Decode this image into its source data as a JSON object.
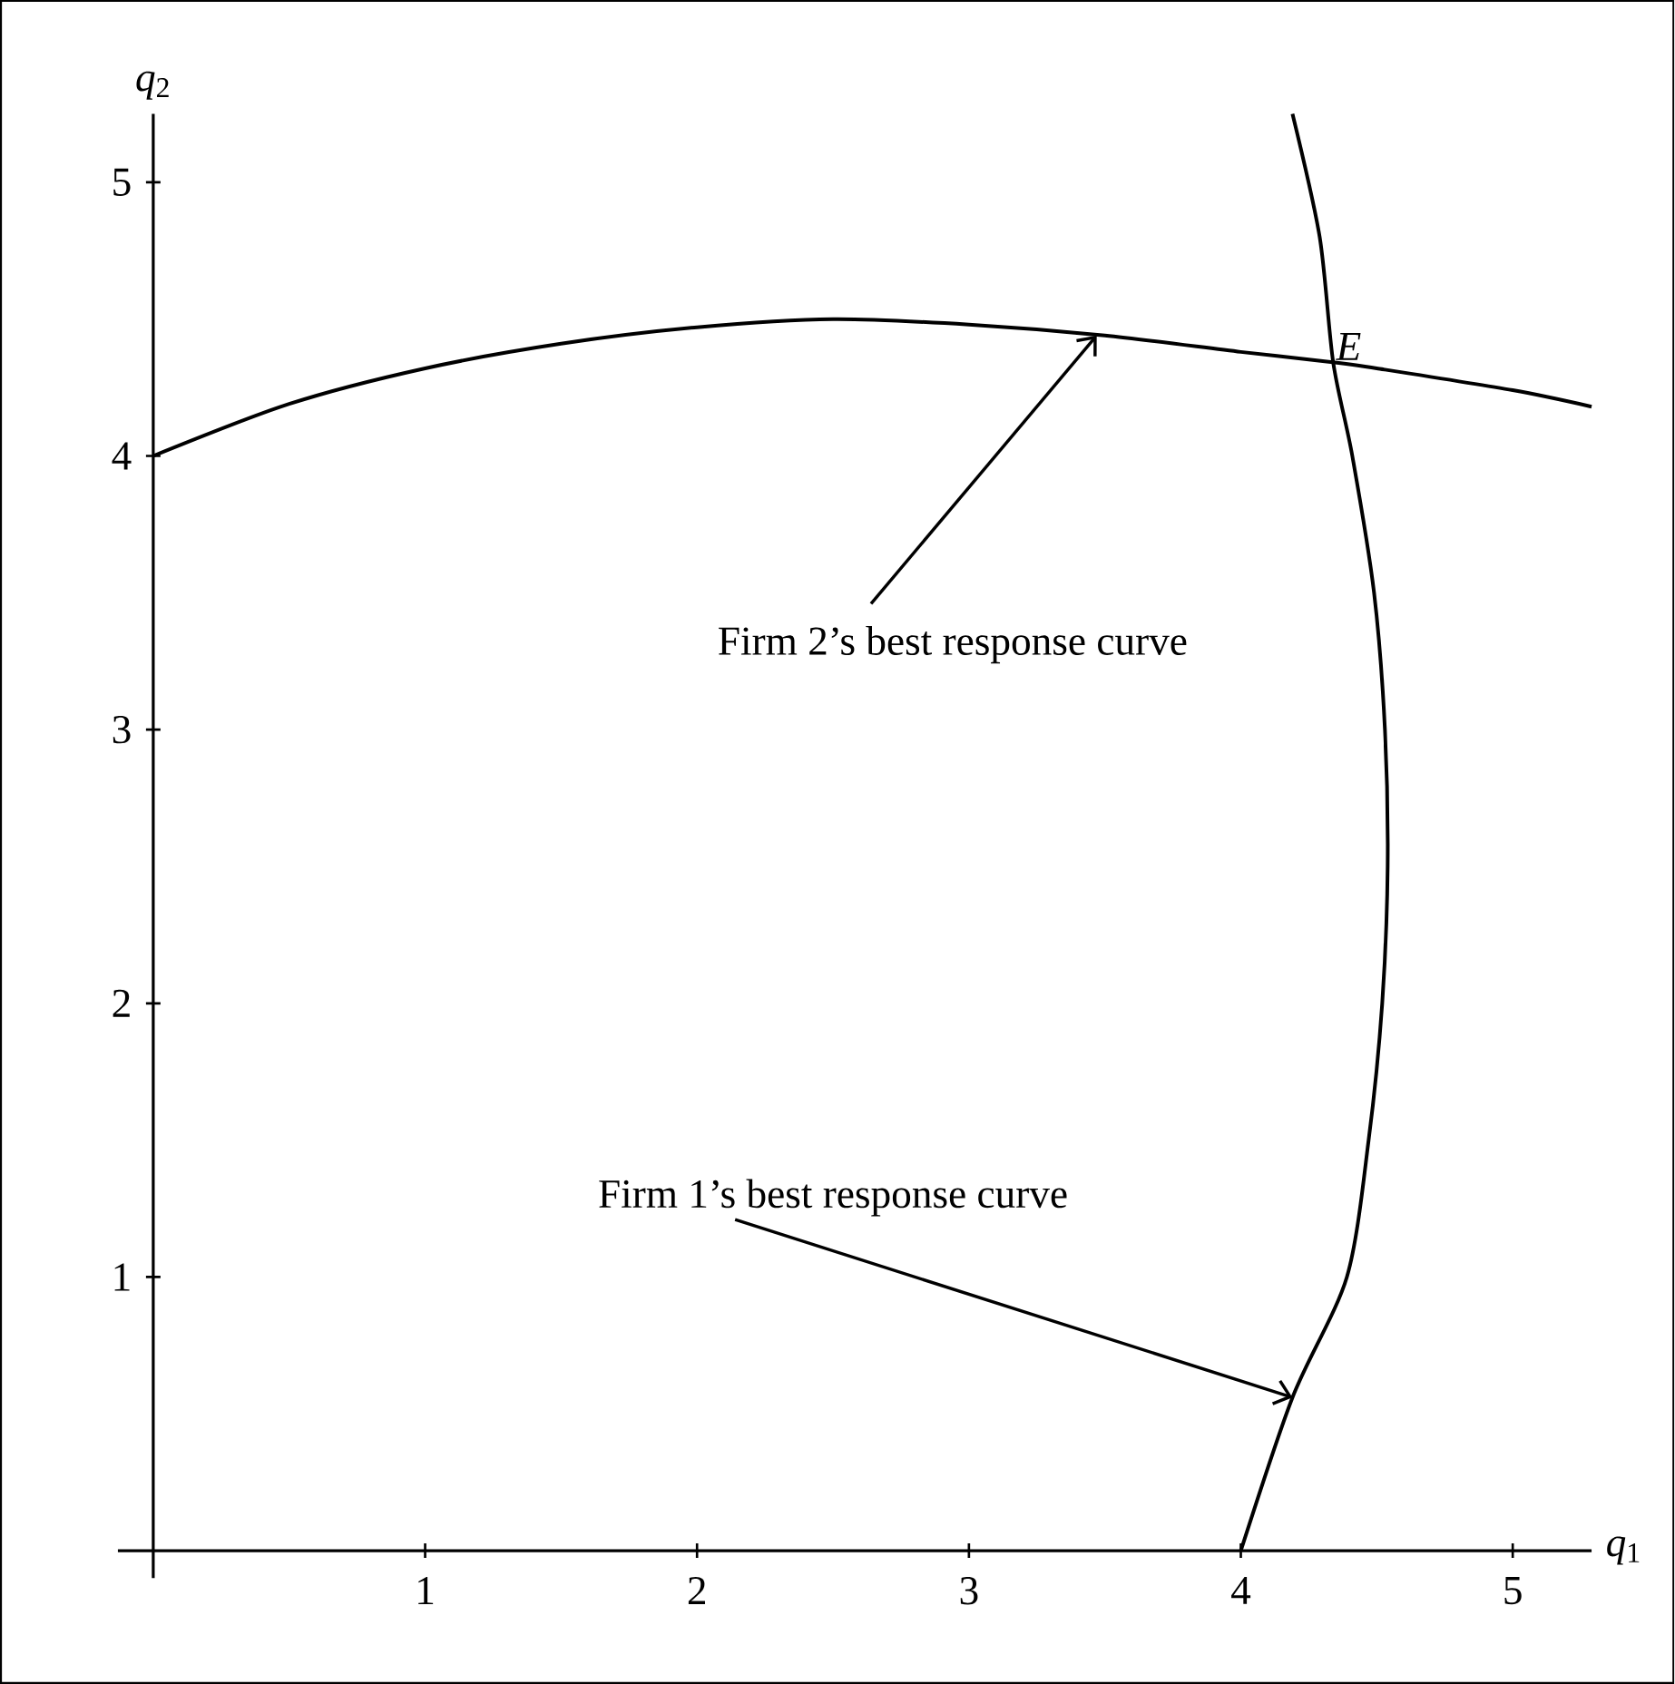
{
  "chart_data": {
    "type": "line",
    "xlabel": "*q*$_{1}$",
    "ylabel": "*q*$_{2}$",
    "series": [
      {
        "color": "#000000",
        "x": [
          0,
          0.5,
          1,
          1.5,
          2,
          2.5,
          3,
          3.5,
          4,
          4.36,
          4.5,
          5,
          5.29
        ],
        "values": [
          4,
          4.19,
          4.32,
          4.41,
          4.47,
          4.5,
          4.48,
          4.44,
          4.38,
          4.34,
          4.32,
          4.24,
          4.18
        ]
      },
      {
        "color": "#000000",
        "x": [
          4,
          4.19,
          4.39,
          4.47,
          4.52,
          4.54,
          4.53,
          4.49,
          4.41,
          4.34,
          4.29,
          4.19
        ],
        "values": [
          0,
          0.56,
          1,
          1.5,
          2,
          2.5,
          3,
          3.5,
          4,
          4.34,
          4.8,
          5.25
        ]
      }
    ],
    "annotations": [
      {
        "text": "Firm 2’s best response curve",
        "x": 3.47,
        "y": 4.44
      },
      {
        "text": "Firm 1’s best response curve",
        "x": 4.19,
        "y": 0.56
      },
      {
        "text": "*E*",
        "x": 4.34,
        "y": 4.34
      }
    ],
    "xlim": [
      -0.13,
      5.29
    ],
    "ylim": [
      -0.1,
      5.25
    ],
    "xticks": [
      {
        "value": 0,
        "label": null
      },
      1,
      2,
      3,
      4,
      5
    ],
    "yticks": [
      {
        "value": 0,
        "label": null
      },
      1,
      2,
      3,
      4,
      5
    ],
    "marker": "none",
    "line_style": "solid"
  }
}
